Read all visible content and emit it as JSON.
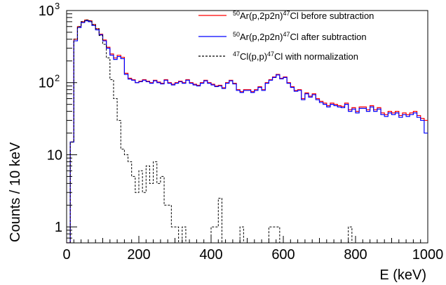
{
  "chart_data": {
    "type": "line",
    "step": true,
    "xlabel": "E (keV)",
    "ylabel": "Counts / 10 keV",
    "xlim": [
      0,
      1000
    ],
    "ylim": [
      0.6,
      1000
    ],
    "yscale": "log",
    "bin_width": 10,
    "x_ticks": [
      {
        "value": 0,
        "label": "0"
      },
      {
        "value": 200,
        "label": "200"
      },
      {
        "value": 400,
        "label": "400"
      },
      {
        "value": 600,
        "label": "600"
      },
      {
        "value": 800,
        "label": "800"
      },
      {
        "value": 1000,
        "label": "1000"
      }
    ],
    "y_ticks": [
      {
        "value": 1,
        "label": "1"
      },
      {
        "value": 10,
        "label": "10"
      },
      {
        "value": 100,
        "label": "10",
        "sup": "2"
      },
      {
        "value": 1000,
        "label": "10",
        "sup": "3"
      }
    ],
    "legend_position": "top-right",
    "series": [
      {
        "legend": {
          "pre_sup": "50",
          "base": "Ar(p,2p2n)",
          "mid_sup": "47",
          "post": "Cl before subtraction"
        },
        "color": "#ff0000",
        "dash": false,
        "x_start": 0,
        "values": [
          0.6,
          15,
          400,
          600,
          700,
          740,
          720,
          640,
          560,
          470,
          390,
          310,
          250,
          220,
          240,
          225,
          135,
          115,
          110,
          100,
          105,
          110,
          105,
          100,
          108,
          102,
          98,
          110,
          100,
          95,
          100,
          105,
          100,
          110,
          100,
          95,
          92,
          100,
          108,
          100,
          95,
          90,
          92,
          85,
          100,
          108,
          98,
          80,
          75,
          80,
          80,
          75,
          80,
          88,
          80,
          100,
          110,
          120,
          130,
          115,
          120,
          100,
          88,
          78,
          80,
          60,
          72,
          65,
          70,
          60,
          55,
          52,
          48,
          52,
          50,
          48,
          47,
          52,
          42,
          45,
          40,
          46,
          46,
          42,
          48,
          42,
          45,
          38,
          36,
          40,
          38,
          40,
          35,
          38,
          36,
          38,
          40,
          35,
          32,
          30
        ]
      },
      {
        "legend": {
          "pre_sup": "50",
          "base": "Ar(p,2p2n)",
          "mid_sup": "47",
          "post": "Cl after subtraction"
        },
        "color": "#0000ff",
        "dash": false,
        "x_start": 0,
        "values": [
          0.6,
          15,
          380,
          580,
          680,
          720,
          700,
          620,
          540,
          460,
          380,
          300,
          240,
          210,
          230,
          215,
          130,
          112,
          108,
          100,
          103,
          108,
          103,
          98,
          106,
          100,
          96,
          108,
          98,
          93,
          98,
          103,
          98,
          108,
          98,
          93,
          90,
          98,
          106,
          98,
          93,
          88,
          90,
          83,
          98,
          106,
          96,
          78,
          73,
          78,
          78,
          73,
          78,
          86,
          78,
          98,
          108,
          118,
          128,
          113,
          118,
          98,
          86,
          76,
          78,
          58,
          70,
          63,
          68,
          58,
          53,
          50,
          46,
          50,
          48,
          46,
          45,
          50,
          40,
          43,
          38,
          44,
          44,
          40,
          46,
          40,
          43,
          36,
          34,
          38,
          36,
          38,
          33,
          36,
          34,
          36,
          38,
          33,
          30,
          20
        ]
      },
      {
        "legend": {
          "pre_sup": "47",
          "base": "Cl(p,p)",
          "mid_sup": "47",
          "post": "Cl with normalization"
        },
        "color": "#000000",
        "dash": true,
        "x_start": 0,
        "values": [
          0.6,
          15,
          400,
          600,
          700,
          740,
          720,
          640,
          560,
          450,
          340,
          220,
          110,
          60,
          30,
          12,
          10,
          8,
          5,
          3,
          6,
          3,
          7,
          4,
          8,
          4,
          5,
          2,
          2,
          1,
          1,
          0.6,
          1,
          0.6,
          0.6,
          0.6,
          0.6,
          0.6,
          0.6,
          0.6,
          1,
          1,
          2.5,
          0.6,
          0.6,
          0.6,
          0.6,
          0.6,
          1,
          0.6,
          0.6,
          0.6,
          0.6,
          0.6,
          0.6,
          0.6,
          1,
          1,
          1,
          0.6,
          0.6,
          0.6,
          0.6,
          0.6,
          0.6,
          0.6,
          0.6,
          0.6,
          0.6,
          0.6,
          0.6,
          0.6,
          0.6,
          0.6,
          0.6,
          0.6,
          0.6,
          0.6,
          1,
          0.6,
          0.6,
          0.6,
          0.6,
          0.6,
          0.6,
          0.6,
          0.6,
          0.6,
          0.6,
          0.6,
          0.6,
          0.6,
          0.6,
          0.6,
          0.6,
          0.6,
          0.6,
          0.6,
          0.6,
          0.6
        ]
      }
    ]
  }
}
